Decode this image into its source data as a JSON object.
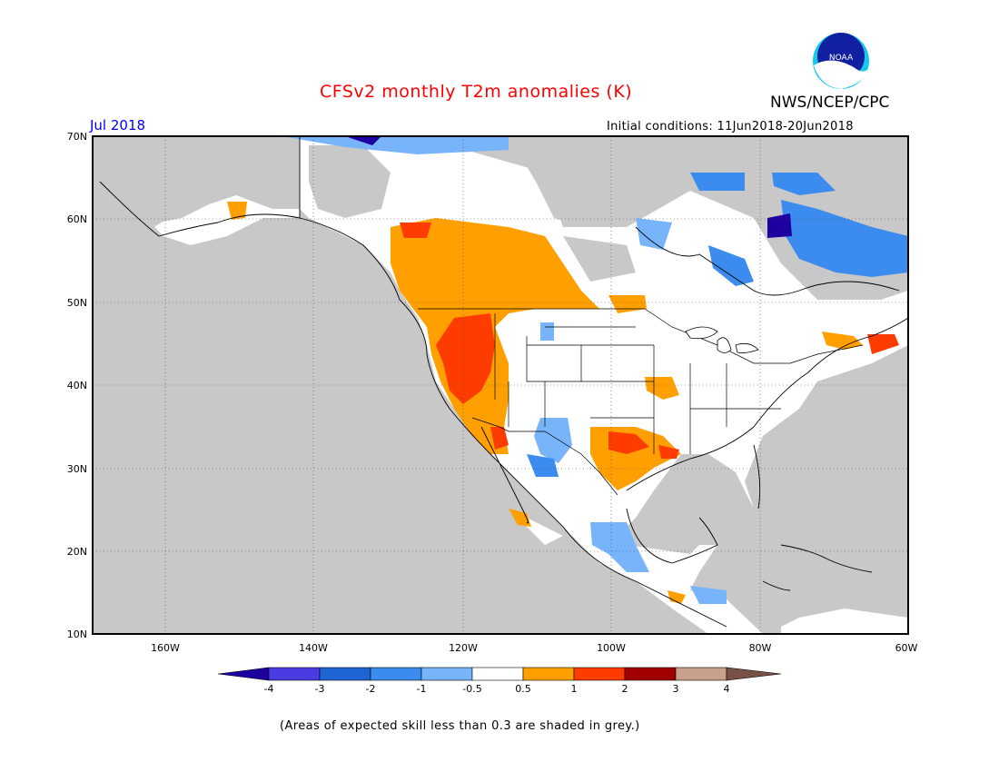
{
  "header": {
    "title": "CFSv2 monthly T2m anomalies (K)",
    "org": "NWS/NCEP/CPC",
    "logo_text": "NOAA",
    "month": "Jul 2018",
    "init": "Initial conditions: 11Jun2018-20Jun2018"
  },
  "map": {
    "lat_labels": [
      "70N",
      "60N",
      "50N",
      "40N",
      "30N",
      "20N",
      "10N"
    ],
    "lon_labels": [
      "160W",
      "140W",
      "120W",
      "100W",
      "80W",
      "60W"
    ],
    "land_color": "#ffffff",
    "ocean_color": "#c8c8c8"
  },
  "legend": {
    "labels": [
      "-4",
      "-3",
      "-2",
      "-1",
      "-0.5",
      "0.5",
      "1",
      "2",
      "3",
      "4"
    ],
    "colors": [
      "#1e00a0",
      "#4b3ce1",
      "#1e64d2",
      "#3c8cf0",
      "#78b4fa",
      "#ffffff",
      "#ffa000",
      "#ff3c00",
      "#a00000",
      "#c8a08c",
      "#785046"
    ]
  },
  "caption": "(Areas of expected skill less than 0.3 are shaded in grey.)"
}
